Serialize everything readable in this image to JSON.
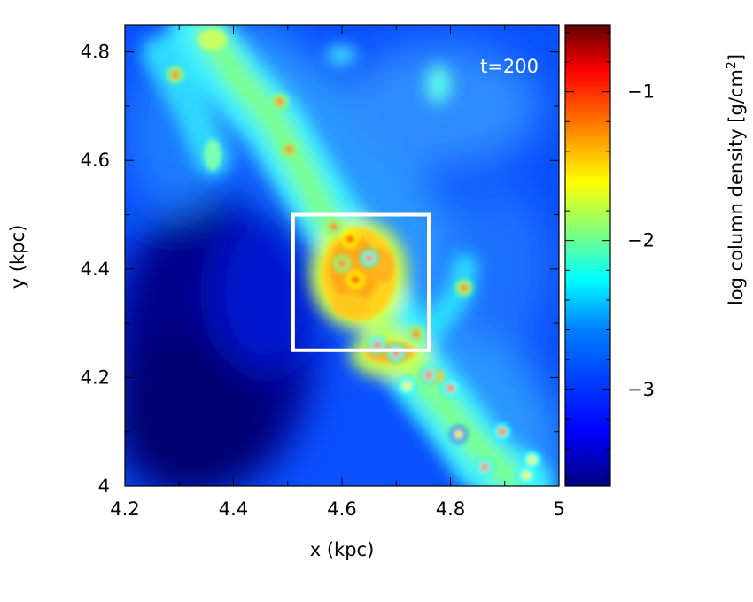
{
  "chart_data": {
    "type": "heatmap",
    "annotation": "t=200",
    "xlabel": "x (kpc)",
    "ylabel": "y (kpc)",
    "colorbar_label": "log column density [g/cm",
    "colorbar_label_sup": "2",
    "colorbar_label_end": "]",
    "xlim": [
      4.2,
      5.0
    ],
    "ylim": [
      4.0,
      4.85
    ],
    "x_ticks": [
      4.2,
      4.4,
      4.6,
      4.8,
      5.0
    ],
    "x_tick_labels": [
      "4.2",
      "4.4",
      "4.6",
      "4.8",
      "5"
    ],
    "y_ticks": [
      4.0,
      4.2,
      4.4,
      4.6,
      4.8
    ],
    "y_tick_labels": [
      "4",
      "4.2",
      "4.4",
      "4.6",
      "4.8"
    ],
    "colorbar_range": [
      -3.65,
      -0.55
    ],
    "colorbar_ticks": [
      -3,
      -2,
      -1
    ],
    "colorbar_tick_labels": [
      "−3",
      "−2",
      "−1"
    ],
    "highlight_box": {
      "x0": 4.51,
      "x1": 4.76,
      "y0": 4.25,
      "y1": 4.5,
      "color": "#ffffff"
    },
    "colormap": [
      "#00007f",
      "#0000ff",
      "#007fff",
      "#00ffff",
      "#7fff7f",
      "#ffff00",
      "#ff7f00",
      "#ff0000",
      "#7f0000"
    ],
    "filament": [
      {
        "x": 4.36,
        "y": 4.84,
        "v": -2.2
      },
      {
        "x": 4.42,
        "y": 4.76,
        "v": -2.4
      },
      {
        "x": 4.48,
        "y": 4.67,
        "v": -2.3
      },
      {
        "x": 4.53,
        "y": 4.56,
        "v": -2.2
      },
      {
        "x": 4.58,
        "y": 4.48,
        "v": -1.6
      },
      {
        "x": 4.62,
        "y": 4.4,
        "v": -1.3
      },
      {
        "x": 4.68,
        "y": 4.27,
        "v": -1.4
      },
      {
        "x": 4.74,
        "y": 4.2,
        "v": -1.7
      },
      {
        "x": 4.8,
        "y": 4.12,
        "v": -2.0
      },
      {
        "x": 4.87,
        "y": 4.06,
        "v": -2.2
      },
      {
        "x": 4.95,
        "y": 4.03,
        "v": -2.3
      }
    ],
    "clumps": [
      {
        "x": 4.293,
        "y": 4.758,
        "v": -1.2
      },
      {
        "x": 4.485,
        "y": 4.708,
        "v": -1.2
      },
      {
        "x": 4.503,
        "y": 4.62,
        "v": -1.3
      },
      {
        "x": 4.615,
        "y": 4.455,
        "v": -0.8
      },
      {
        "x": 4.585,
        "y": 4.478,
        "v": -1.3
      },
      {
        "x": 4.625,
        "y": 4.38,
        "v": -0.9
      },
      {
        "x": 4.6,
        "y": 4.41,
        "v": -1.3
      },
      {
        "x": 4.65,
        "y": 4.42,
        "v": -1.4
      },
      {
        "x": 4.665,
        "y": 4.26,
        "v": -1.4
      },
      {
        "x": 4.7,
        "y": 4.245,
        "v": -1.4
      },
      {
        "x": 4.737,
        "y": 4.28,
        "v": -1.3
      },
      {
        "x": 4.76,
        "y": 4.205,
        "v": -1.5
      },
      {
        "x": 4.8,
        "y": 4.18,
        "v": -1.5
      },
      {
        "x": 4.825,
        "y": 4.365,
        "v": -1.2
      },
      {
        "x": 4.895,
        "y": 4.1,
        "v": -1.5
      },
      {
        "x": 4.863,
        "y": 4.035,
        "v": -1.5
      },
      {
        "x": 4.95,
        "y": 4.048,
        "v": -1.6
      },
      {
        "x": 4.94,
        "y": 4.02,
        "v": -1.6
      },
      {
        "x": 4.72,
        "y": 4.185,
        "v": -1.6
      },
      {
        "x": 4.815,
        "y": 4.095,
        "v": -1.8
      }
    ]
  }
}
